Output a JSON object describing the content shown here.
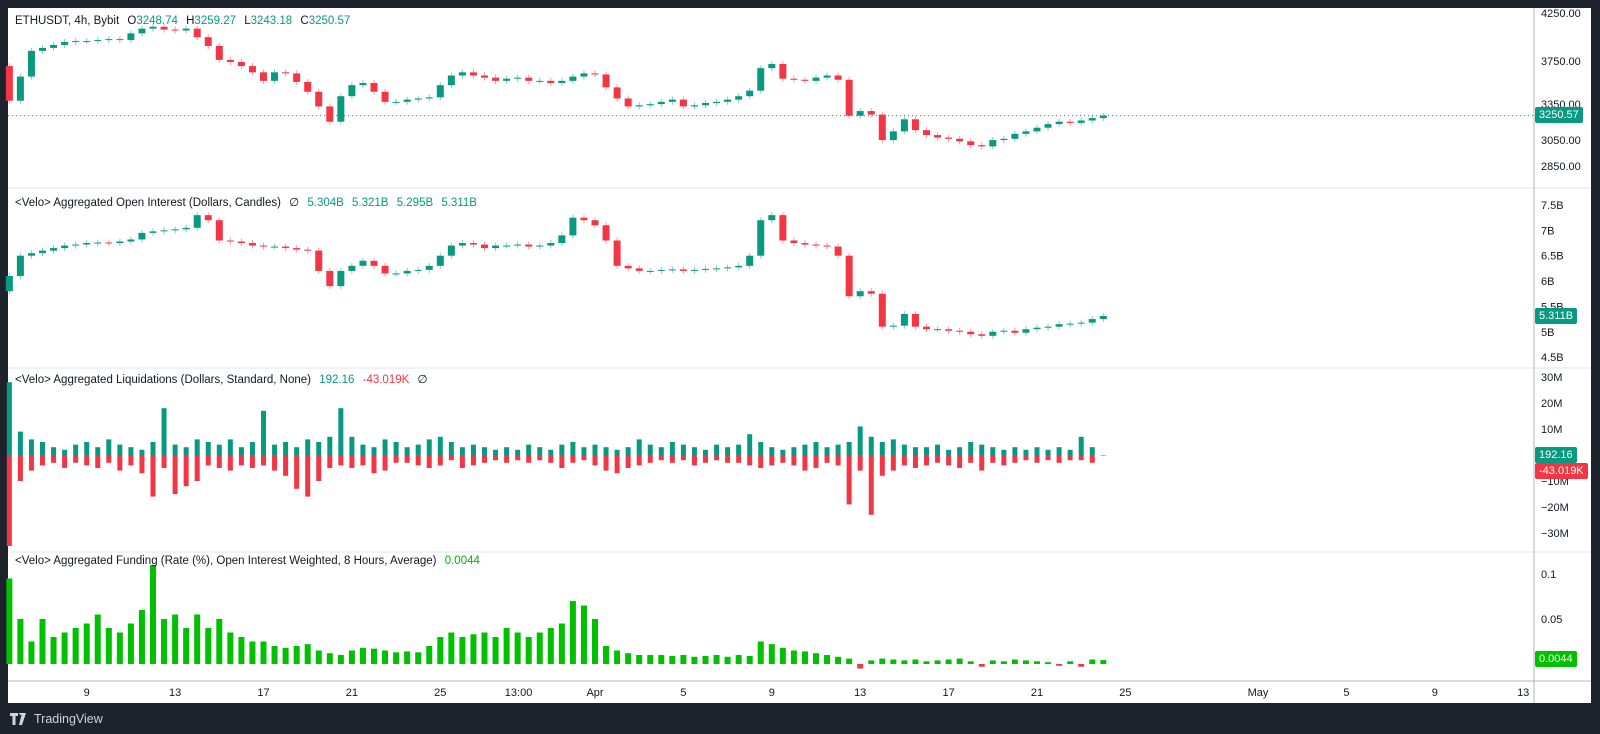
{
  "colors": {
    "up": "#089981",
    "down": "#f23645",
    "funding": "#00c000",
    "frame": "#1e222d"
  },
  "legends": {
    "price": {
      "symbol": "ETHUSDT, 4h, Bybit",
      "o_label": "O",
      "o": "3248.74",
      "h_label": "H",
      "h": "3259.27",
      "l_label": "L",
      "l": "3243.18",
      "c_label": "C",
      "c": "3250.57"
    },
    "oi": {
      "title": "<Velo> Aggregated Open Interest (Dollars, Candles)",
      "icon": "∅",
      "v1": "5.304B",
      "v2": "5.321B",
      "v3": "5.295B",
      "v4": "5.311B"
    },
    "liq": {
      "title": "<Velo> Aggregated Liquidations (Dollars, Standard, None)",
      "short": "192.16",
      "long": "-43.019K",
      "icon": "∅"
    },
    "funding": {
      "title": "<Velo> Aggregated Funding (Rate (%), Open Interest Weighted, 8 Hours, Average)",
      "value": "0.0044"
    }
  },
  "tags": {
    "price": "3250.57",
    "oi": "5.311B",
    "liq_short": "192.16",
    "liq_long": "-43.019K",
    "funding": "0.0044"
  },
  "footer": {
    "brand": "TradingView"
  },
  "chart_data": [
    {
      "type": "candlestick",
      "pane": "price",
      "scale": "log",
      "yticks": [
        "4250.00",
        "3750.00",
        "3350.00",
        "3050.00",
        "2850.00"
      ],
      "x_start": "03-05T12:00",
      "interval_hours": 12,
      "first_open": 3700,
      "close": [
        3380,
        3600,
        3850,
        3880,
        3910,
        3940,
        3950,
        3950,
        3960,
        3970,
        3960,
        4030,
        4080,
        4100,
        4070,
        4060,
        4080,
        3990,
        3900,
        3760,
        3740,
        3700,
        3640,
        3560,
        3640,
        3630,
        3550,
        3460,
        3330,
        3200,
        3420,
        3520,
        3540,
        3460,
        3370,
        3370,
        3390,
        3400,
        3410,
        3520,
        3610,
        3640,
        3610,
        3590,
        3560,
        3580,
        3590,
        3560,
        3560,
        3540,
        3560,
        3600,
        3630,
        3620,
        3500,
        3400,
        3330,
        3340,
        3350,
        3370,
        3390,
        3330,
        3340,
        3360,
        3370,
        3390,
        3420,
        3470,
        3680,
        3720,
        3580,
        3570,
        3560,
        3590,
        3610,
        3570,
        3250,
        3290,
        3260,
        3050,
        3120,
        3220,
        3130,
        3090,
        3070,
        3060,
        3040,
        3010,
        3000,
        3050,
        3060,
        3100,
        3120,
        3150,
        3180,
        3200,
        3190,
        3210,
        3230,
        3250.57
      ],
      "last": 3250.57
    },
    {
      "type": "candlestick",
      "pane": "open_interest",
      "unit": "B",
      "yticks": [
        "7.5B",
        "7B",
        "6.5B",
        "6B",
        "5.5B",
        "5B",
        "4.5B"
      ],
      "first_open": 5.8,
      "close": [
        6.1,
        6.5,
        6.55,
        6.6,
        6.65,
        6.7,
        6.72,
        6.75,
        6.76,
        6.75,
        6.78,
        6.82,
        6.95,
        6.98,
        7.0,
        7.02,
        7.05,
        7.3,
        7.2,
        6.8,
        6.78,
        6.75,
        6.7,
        6.68,
        6.68,
        6.65,
        6.62,
        6.6,
        6.2,
        5.9,
        6.2,
        6.3,
        6.4,
        6.3,
        6.15,
        6.15,
        6.2,
        6.22,
        6.3,
        6.5,
        6.7,
        6.75,
        6.72,
        6.65,
        6.7,
        6.7,
        6.72,
        6.68,
        6.7,
        6.75,
        6.9,
        7.25,
        7.2,
        7.1,
        6.8,
        6.3,
        6.25,
        6.2,
        6.2,
        6.22,
        6.23,
        6.2,
        6.22,
        6.24,
        6.25,
        6.27,
        6.3,
        6.5,
        7.2,
        7.3,
        6.8,
        6.75,
        6.72,
        6.7,
        6.68,
        6.5,
        5.7,
        5.8,
        5.75,
        5.1,
        5.12,
        5.35,
        5.1,
        5.05,
        5.05,
        5.02,
        5.0,
        4.95,
        4.92,
        5.0,
        5.02,
        4.98,
        5.05,
        5.08,
        5.1,
        5.15,
        5.16,
        5.18,
        5.25,
        5.311
      ]
    },
    {
      "type": "bar",
      "pane": "liquidations",
      "unit": "M",
      "yticks": [
        "30M",
        "20M",
        "10M",
        "−10M",
        "−20M",
        "−30M"
      ],
      "shorts": [
        28,
        9,
        6,
        5,
        3,
        2,
        4,
        5,
        3,
        6,
        4,
        3,
        2,
        5,
        18,
        4,
        3,
        6,
        5,
        4,
        6,
        3,
        5,
        17,
        4,
        5,
        3,
        6,
        5,
        7,
        18,
        7,
        4,
        3,
        6,
        5,
        3,
        4,
        6,
        7,
        5,
        3,
        4,
        3,
        2,
        3,
        2,
        4,
        3,
        2,
        4,
        5,
        3,
        4,
        3,
        2,
        3,
        6,
        4,
        3,
        5,
        4,
        3,
        2,
        4,
        3,
        4,
        8,
        5,
        3,
        2,
        3,
        4,
        5,
        3,
        4,
        5,
        11,
        7,
        5,
        6,
        4,
        3,
        3,
        4,
        2,
        3,
        5,
        4,
        3,
        2,
        3,
        2,
        3,
        2,
        3,
        2,
        7,
        3,
        0.00019216
      ],
      "longs": [
        -35,
        -10,
        -6,
        -4,
        -3,
        -5,
        -3,
        -4,
        -5,
        -3,
        -6,
        -4,
        -7,
        -16,
        -5,
        -15,
        -12,
        -10,
        -4,
        -5,
        -6,
        -4,
        -5,
        -4,
        -6,
        -8,
        -13,
        -16,
        -10,
        -5,
        -4,
        -5,
        -4,
        -7,
        -6,
        -3,
        -3,
        -4,
        -5,
        -4,
        -2,
        -5,
        -4,
        -3,
        -2,
        -3,
        -2,
        -3,
        -2,
        -3,
        -5,
        -3,
        -2,
        -4,
        -6,
        -7,
        -5,
        -4,
        -3,
        -2,
        -3,
        -2,
        -4,
        -3,
        -2,
        -3,
        -3,
        -4,
        -5,
        -4,
        -3,
        -4,
        -6,
        -5,
        -3,
        -4,
        -19,
        -6,
        -23,
        -8,
        -6,
        -4,
        -5,
        -4,
        -3,
        -4,
        -5,
        -3,
        -6,
        -3,
        -4,
        -3,
        -2,
        -3,
        -2,
        -3,
        -2,
        -2,
        -3,
        -0.043019
      ]
    },
    {
      "type": "bar",
      "pane": "funding",
      "unit": "%",
      "yticks": [
        "0.1",
        "0.05"
      ],
      "values": [
        0.095,
        0.05,
        0.025,
        0.05,
        0.03,
        0.035,
        0.04,
        0.045,
        0.055,
        0.04,
        0.035,
        0.045,
        0.06,
        0.11,
        0.05,
        0.055,
        0.04,
        0.055,
        0.04,
        0.05,
        0.035,
        0.03,
        0.025,
        0.025,
        0.02,
        0.018,
        0.02,
        0.022,
        0.015,
        0.012,
        0.01,
        0.015,
        0.018,
        0.017,
        0.015,
        0.013,
        0.014,
        0.013,
        0.02,
        0.03,
        0.035,
        0.03,
        0.033,
        0.035,
        0.03,
        0.04,
        0.035,
        0.03,
        0.035,
        0.04,
        0.045,
        0.07,
        0.065,
        0.05,
        0.02,
        0.015,
        0.012,
        0.01,
        0.01,
        0.01,
        0.009,
        0.01,
        0.008,
        0.009,
        0.01,
        0.008,
        0.01,
        0.009,
        0.025,
        0.022,
        0.018,
        0.015,
        0.014,
        0.012,
        0.01,
        0.008,
        0.006,
        -0.005,
        0.004,
        0.006,
        0.005,
        0.004,
        0.005,
        0.003,
        0.004,
        0.005,
        0.006,
        0.003,
        -0.003,
        0.004,
        0.003,
        0.005,
        0.004,
        0.003,
        0.002,
        -0.002,
        0.003,
        -0.003,
        0.005,
        0.0044
      ]
    }
  ],
  "time_axis": [
    {
      "label": "9",
      "t": "03-09T00:00"
    },
    {
      "label": "13",
      "t": "03-13T00:00"
    },
    {
      "label": "17",
      "t": "03-17T00:00"
    },
    {
      "label": "21",
      "t": "03-21T00:00"
    },
    {
      "label": "25",
      "t": "03-25T00:00"
    },
    {
      "label": "13:00",
      "t": "03-28T13:00"
    },
    {
      "label": "Apr",
      "t": "04-01T00:00"
    },
    {
      "label": "5",
      "t": "04-05T00:00"
    },
    {
      "label": "9",
      "t": "04-09T00:00"
    },
    {
      "label": "13",
      "t": "04-13T00:00"
    },
    {
      "label": "17",
      "t": "04-17T00:00"
    },
    {
      "label": "21",
      "t": "04-21T00:00"
    },
    {
      "label": "25",
      "t": "04-25T00:00"
    },
    {
      "label": "May",
      "t": "05-01T00:00"
    },
    {
      "label": "5",
      "t": "05-05T00:00"
    },
    {
      "label": "9",
      "t": "05-09T00:00"
    },
    {
      "label": "13",
      "t": "05-13T00:00"
    }
  ]
}
